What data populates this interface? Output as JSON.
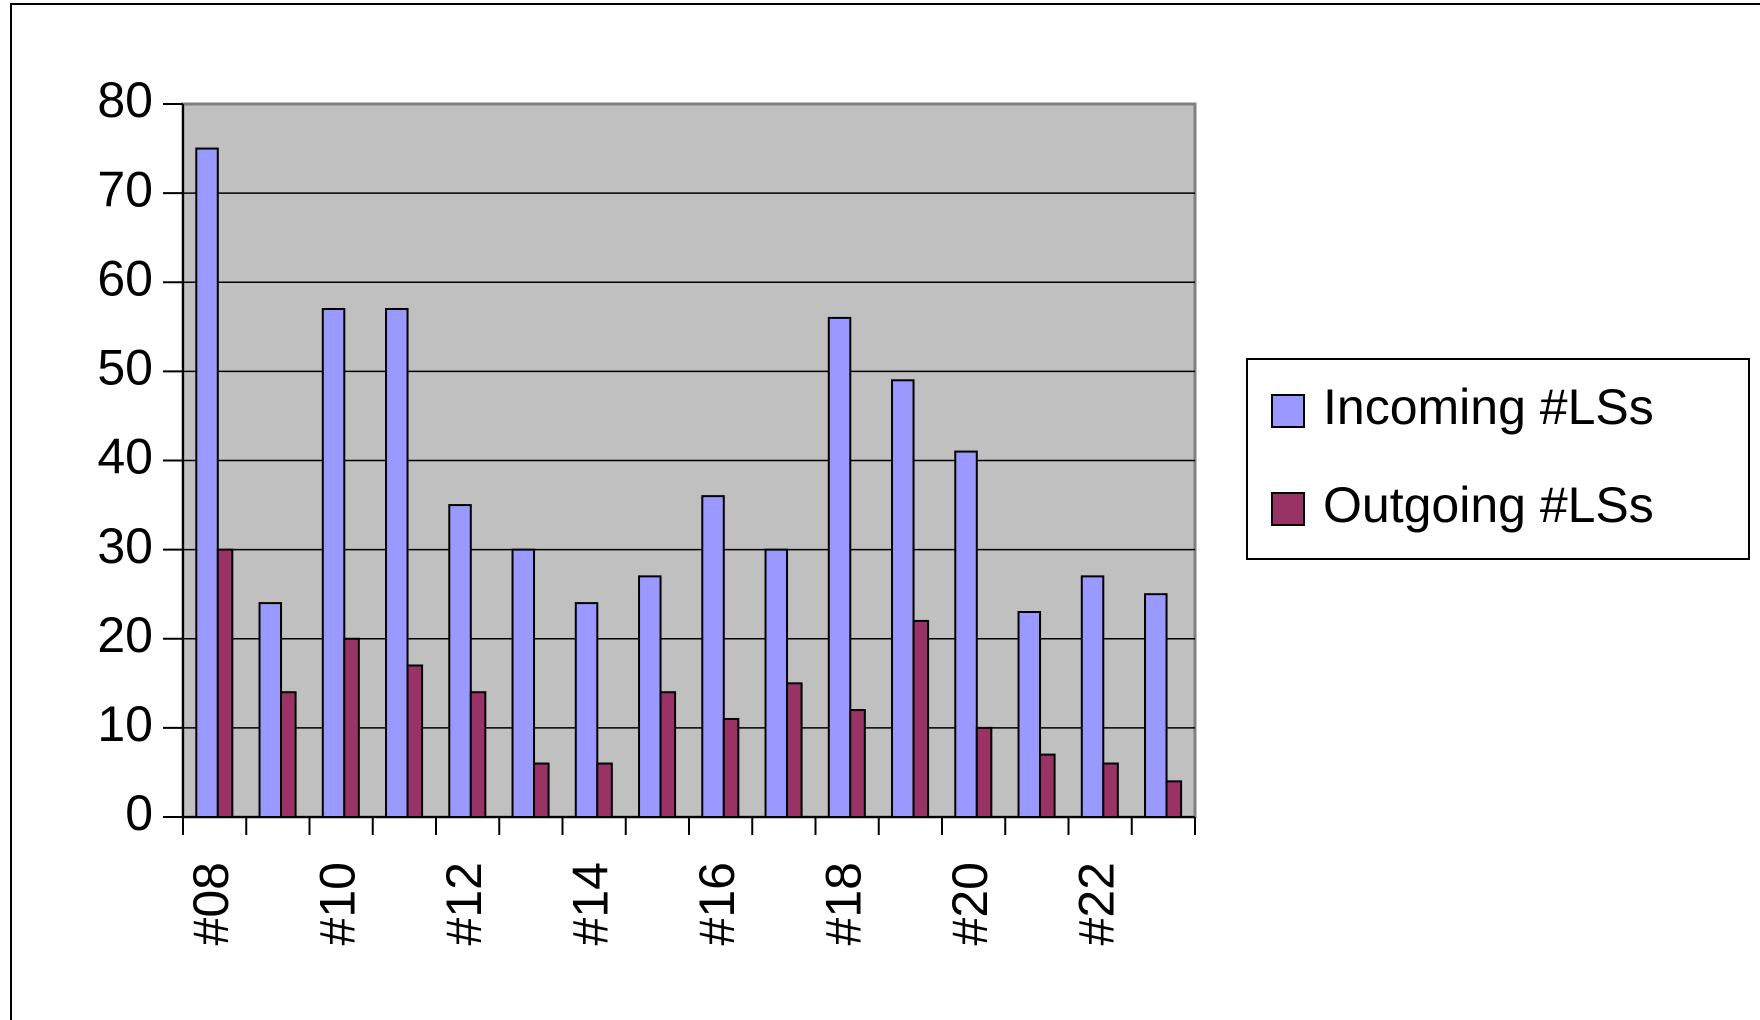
{
  "chart_data": {
    "type": "bar",
    "categories": [
      "#08",
      null,
      "#10",
      null,
      "#12",
      null,
      "#14",
      null,
      "#16",
      null,
      "#18",
      null,
      "#20",
      null,
      "#22",
      null
    ],
    "series": [
      {
        "name": "Incoming #LSs",
        "color": "#9999ff",
        "values": [
          75,
          24,
          57,
          57,
          35,
          30,
          24,
          27,
          36,
          30,
          56,
          49,
          41,
          23,
          27,
          25
        ]
      },
      {
        "name": "Outgoing #LSs",
        "color": "#993366",
        "values": [
          30,
          14,
          20,
          17,
          14,
          6,
          6,
          14,
          11,
          15,
          12,
          22,
          10,
          7,
          6,
          4
        ]
      }
    ],
    "ylim": [
      0,
      80
    ],
    "yticks": [
      0,
      10,
      20,
      30,
      40,
      50,
      60,
      70,
      80
    ],
    "grid": true,
    "plot_background": "#c0c0c0",
    "legend": "right"
  }
}
